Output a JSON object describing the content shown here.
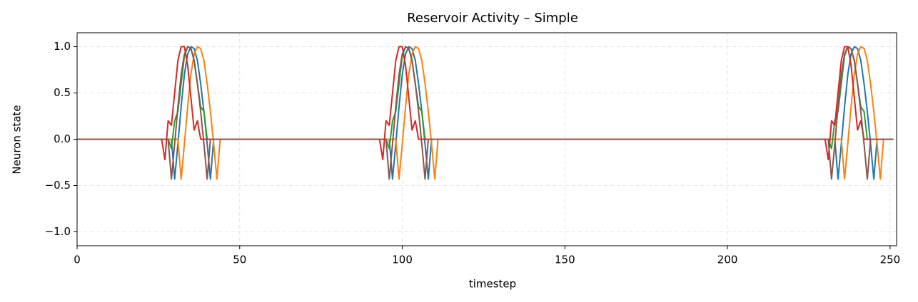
{
  "chart_data": {
    "type": "line",
    "title": "Reservoir Activity – Simple",
    "xlabel": "timestep",
    "ylabel": "Neuron state",
    "x": [
      0,
      25,
      26,
      27,
      28,
      29,
      30,
      31,
      32,
      33,
      34,
      35,
      36,
      37,
      38,
      39,
      40,
      41,
      42,
      43,
      44,
      45,
      92,
      93,
      94,
      95,
      96,
      97,
      98,
      99,
      100,
      101,
      102,
      103,
      104,
      105,
      106,
      107,
      108,
      109,
      110,
      111,
      112,
      229,
      230,
      231,
      232,
      233,
      234,
      235,
      236,
      237,
      238,
      239,
      240,
      241,
      242,
      243,
      244,
      245,
      246,
      247,
      248,
      249,
      251
    ],
    "series": [
      {
        "color": "#1f77b4",
        "values": [
          0,
          0,
          0,
          0,
          0,
          0,
          -0.43,
          -0.05,
          0.35,
          0.7,
          0.92,
          1.0,
          0.98,
          0.85,
          0.6,
          0.3,
          -0.05,
          -0.43,
          0,
          0,
          0,
          0,
          0,
          0,
          0,
          0,
          0,
          -0.43,
          -0.05,
          0.35,
          0.7,
          0.92,
          1.0,
          0.98,
          0.85,
          0.6,
          0.3,
          -0.05,
          -0.43,
          0,
          0,
          0,
          0,
          0,
          0,
          0,
          0,
          0,
          -0.43,
          -0.05,
          0.35,
          0.7,
          0.92,
          1.0,
          0.98,
          0.85,
          0.6,
          0.3,
          -0.05,
          -0.43,
          0,
          0,
          0,
          0,
          0
        ]
      },
      {
        "color": "#ff7f0e",
        "values": [
          0,
          0,
          0,
          0,
          0,
          0,
          0,
          0,
          -0.43,
          -0.05,
          0.35,
          0.7,
          0.92,
          1.0,
          0.98,
          0.85,
          0.6,
          0.3,
          -0.05,
          -0.43,
          0,
          0,
          0,
          0,
          0,
          0,
          0,
          0,
          0,
          -0.43,
          -0.05,
          0.35,
          0.7,
          0.92,
          1.0,
          0.98,
          0.85,
          0.6,
          0.3,
          -0.05,
          -0.43,
          0,
          0,
          0,
          0,
          0,
          0,
          0,
          0,
          0,
          -0.43,
          -0.05,
          0.35,
          0.7,
          0.92,
          1.0,
          0.98,
          0.85,
          0.6,
          0.3,
          -0.05,
          -0.43,
          0,
          0,
          0
        ]
      },
      {
        "color": "#2ca02c",
        "values": [
          0,
          0,
          0,
          0,
          0,
          -0.1,
          0.2,
          0.3,
          0.6,
          0.9,
          1.0,
          0.98,
          0.85,
          0.6,
          0.35,
          0.3,
          0,
          0,
          0,
          0,
          0,
          0,
          0,
          0,
          0,
          0,
          -0.1,
          0.2,
          0.3,
          0.6,
          0.9,
          1.0,
          0.98,
          0.85,
          0.6,
          0.35,
          0.3,
          0,
          0,
          0,
          0,
          0,
          0,
          0,
          0,
          0,
          -0.1,
          0.2,
          0.3,
          0.6,
          0.9,
          1.0,
          0.98,
          0.85,
          0.6,
          0.35,
          0.3,
          0,
          0,
          0,
          0,
          0,
          0,
          0,
          0
        ]
      },
      {
        "color": "#d62728",
        "values": [
          0,
          0,
          0,
          -0.22,
          0.2,
          0.15,
          0.5,
          0.85,
          1.0,
          1.0,
          0.8,
          0.45,
          0.1,
          0.2,
          0,
          0,
          0,
          0,
          0,
          0,
          0,
          0,
          0,
          0,
          -0.22,
          0.2,
          0.15,
          0.5,
          0.85,
          1.0,
          1.0,
          0.8,
          0.45,
          0.1,
          0.2,
          0,
          0,
          0,
          0,
          0,
          0,
          0,
          0,
          0,
          0,
          -0.22,
          0.2,
          0.15,
          0.5,
          0.85,
          1.0,
          1.0,
          0.8,
          0.45,
          0.1,
          0.2,
          0,
          0,
          0,
          0,
          0,
          0,
          0,
          0,
          0
        ]
      },
      {
        "color": "#8c564b",
        "values": [
          0,
          0,
          0,
          0,
          0,
          -0.43,
          -0.05,
          0.35,
          0.7,
          0.92,
          1.0,
          0.98,
          0.85,
          0.6,
          0.3,
          -0.05,
          -0.43,
          0,
          0,
          0,
          0,
          0,
          0,
          0,
          0,
          0,
          -0.43,
          -0.05,
          0.35,
          0.7,
          0.92,
          1.0,
          0.98,
          0.85,
          0.6,
          0.3,
          -0.05,
          -0.43,
          0,
          0,
          0,
          0,
          0,
          0,
          0,
          0,
          -0.43,
          -0.05,
          0.35,
          0.7,
          0.92,
          1.0,
          0.98,
          0.85,
          0.6,
          0.3,
          -0.05,
          -0.43,
          0,
          0,
          0,
          0,
          0,
          0,
          0
        ]
      }
    ],
    "xlim": [
      0,
      252
    ],
    "ylim": [
      -1.15,
      1.15
    ],
    "xticks": [
      0,
      50,
      100,
      150,
      200,
      250
    ],
    "yticks": [
      {
        "value": -1.0,
        "label": "−1.0"
      },
      {
        "value": -0.5,
        "label": "−0.5"
      },
      {
        "value": 0.0,
        "label": "0.0"
      },
      0.5,
      {
        "value": 1.0,
        "label": "1.0"
      }
    ],
    "grid": true
  }
}
